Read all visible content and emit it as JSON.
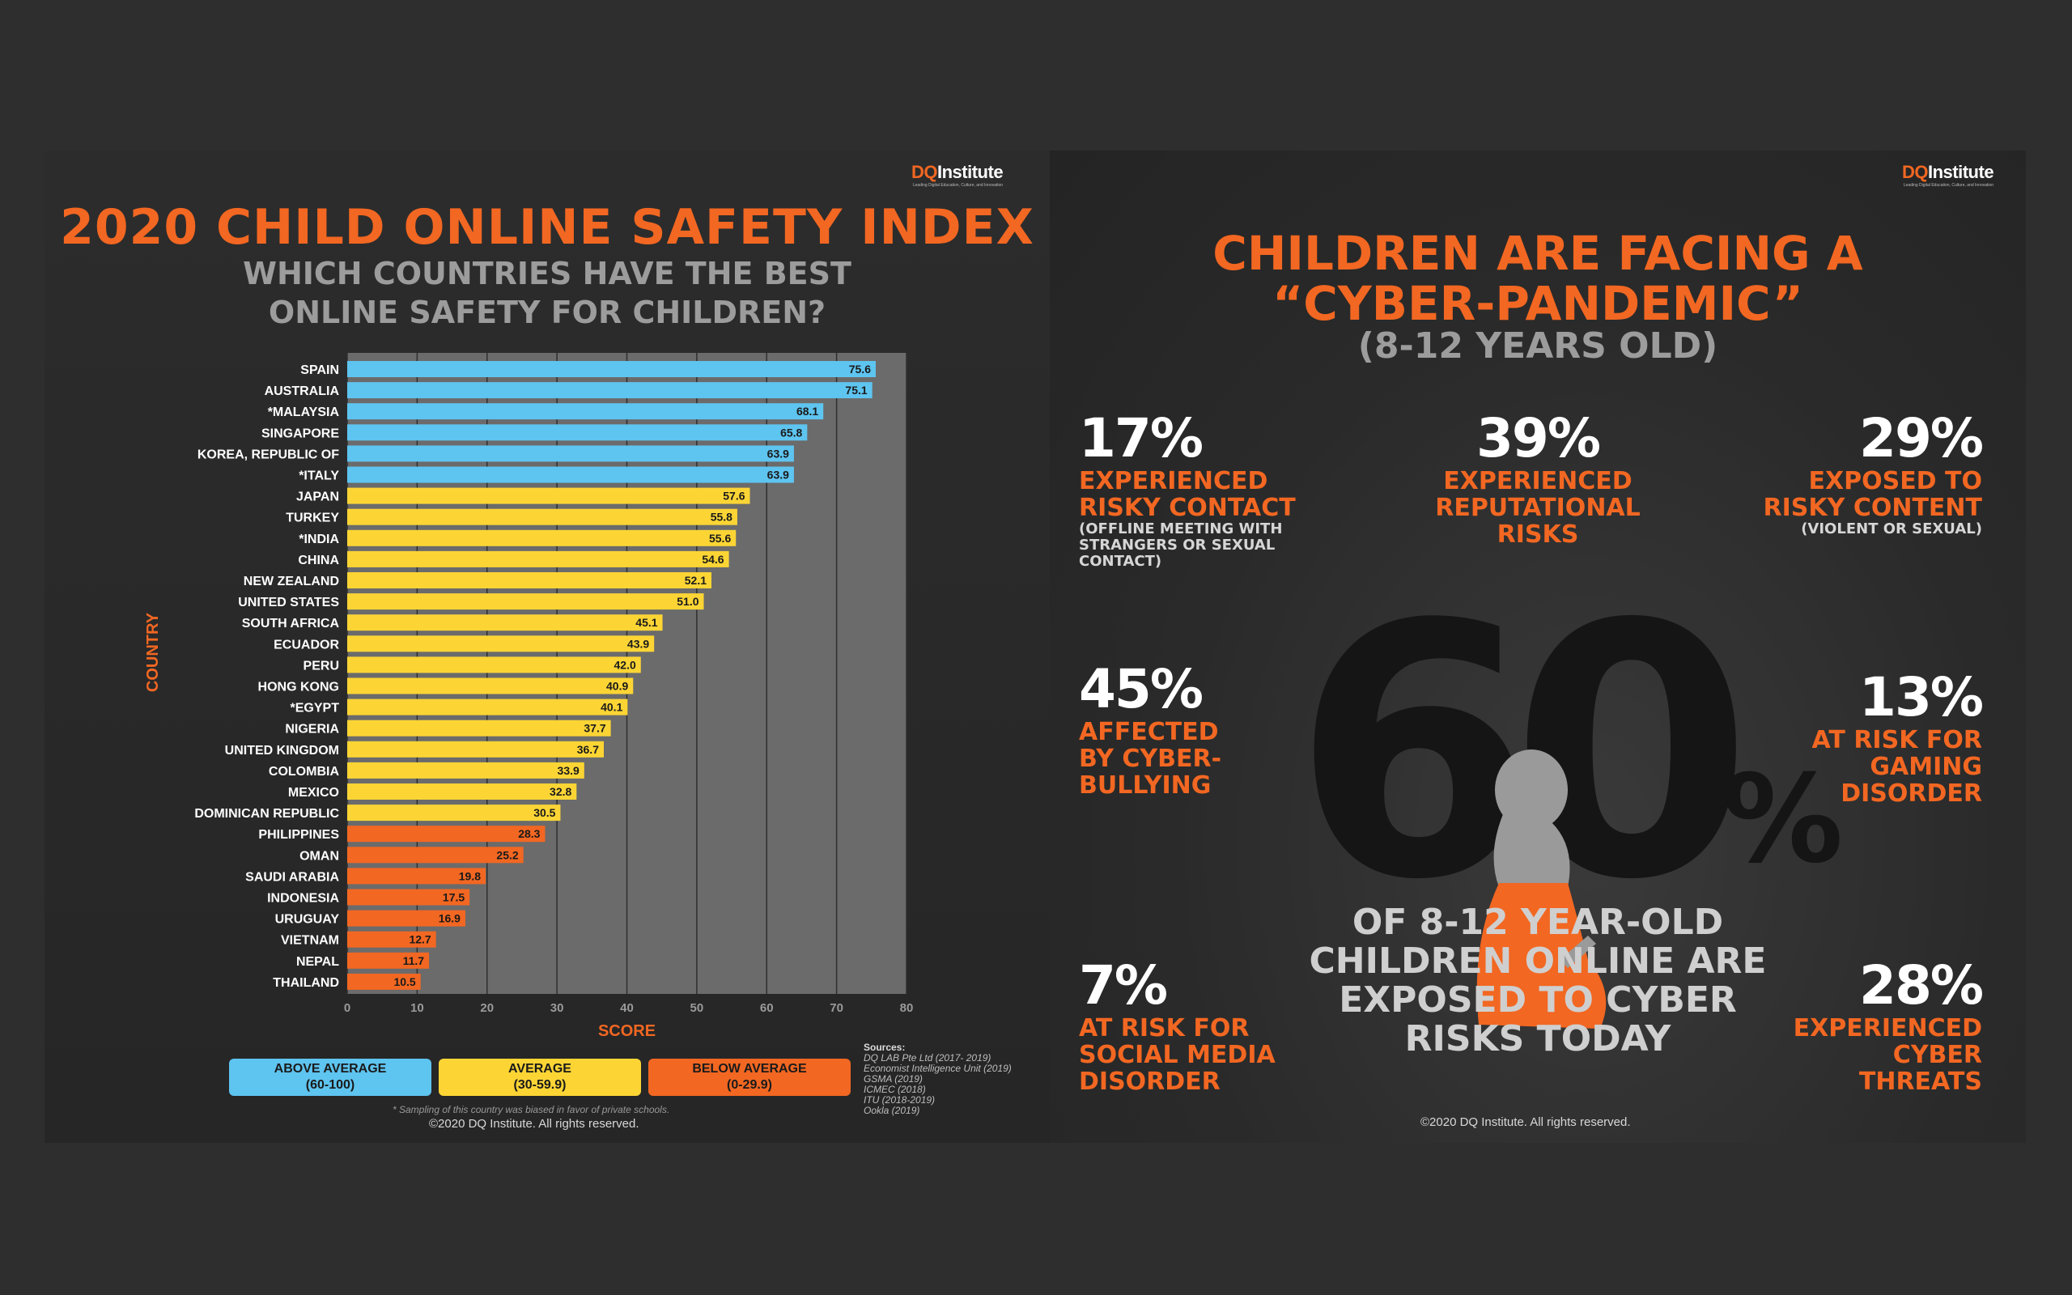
{
  "left": {
    "logo": {
      "dq": "DQ",
      "institute": "Institute",
      "tagline": "Leading Digital Education, Culture, and Innovation"
    },
    "title": "2020 CHILD ONLINE SAFETY INDEX",
    "subtitle_line1": "WHICH COUNTRIES HAVE THE BEST",
    "subtitle_line2": "ONLINE SAFETY FOR CHILDREN?",
    "legend": [
      {
        "label": "ABOVE AVERAGE",
        "range": "(60-100)",
        "color": "#5ec4f0"
      },
      {
        "label": "AVERAGE",
        "range": "(30-59.9)",
        "color": "#fcd535"
      },
      {
        "label": "BELOW AVERAGE",
        "range": "(0-29.9)",
        "color": "#f26722"
      }
    ],
    "footnote": "* Sampling of this country was biased in favor of private schools.",
    "copyright": "©2020 DQ Institute. All rights reserved.",
    "sources_heading": "Sources:",
    "sources": [
      "DQ LAB Pte Ltd (2017- 2019)",
      "Economist Intelligence Unit (2019)",
      "GSMA (2019)",
      "ICMEC (2018)",
      "ITU (2018-2019)",
      "Ookla (2019)"
    ]
  },
  "chart_data": {
    "type": "bar",
    "orientation": "horizontal",
    "xlabel": "SCORE",
    "ylabel": "COUNTRY",
    "xlim": [
      0,
      80
    ],
    "xticks": [
      0,
      10,
      20,
      30,
      40,
      50,
      60,
      70,
      80
    ],
    "grid": true,
    "categories": [
      "SPAIN",
      "AUSTRALIA",
      "*MALAYSIA",
      "SINGAPORE",
      "KOREA, REPUBLIC OF",
      "*ITALY",
      "JAPAN",
      "TURKEY",
      "*INDIA",
      "CHINA",
      "NEW ZEALAND",
      "UNITED STATES",
      "SOUTH AFRICA",
      "ECUADOR",
      "PERU",
      "HONG KONG",
      "*EGYPT",
      "NIGERIA",
      "UNITED KINGDOM",
      "COLOMBIA",
      "MEXICO",
      "DOMINICAN REPUBLIC",
      "PHILIPPINES",
      "OMAN",
      "SAUDI ARABIA",
      "INDONESIA",
      "URUGUAY",
      "VIETNAM",
      "NEPAL",
      "THAILAND"
    ],
    "values": [
      75.6,
      75.1,
      68.1,
      65.8,
      63.9,
      63.9,
      57.6,
      55.8,
      55.6,
      54.6,
      52.1,
      51.0,
      45.1,
      43.9,
      42.0,
      40.9,
      40.1,
      37.7,
      36.7,
      33.9,
      32.8,
      30.5,
      28.3,
      25.2,
      19.8,
      17.5,
      16.9,
      12.7,
      11.7,
      10.5
    ],
    "value_labels": [
      "75.6",
      "75.1",
      "68.1",
      "65.8",
      "63.9",
      "63.9",
      "57.6",
      "55.8",
      "55.6",
      "54.6",
      "52.1",
      "51.0",
      "45.1",
      "43.9",
      "42.0",
      "40.9",
      "40.1",
      "37.7",
      "36.7",
      "33.9",
      "32.8",
      "30.5",
      "28.3",
      "25.2",
      "19.8",
      "17.5",
      "16.9",
      "12.7",
      "11.7",
      "10.5"
    ],
    "colors": {
      "above": "#5ec4f0",
      "average": "#fcd535",
      "below": "#f26722"
    }
  },
  "right": {
    "logo": {
      "dq": "DQ",
      "institute": "Institute",
      "tagline": "Leading Digital Education, Culture, and Innovation"
    },
    "title_line1": "CHILDREN ARE FACING A",
    "title_line2": "“CYBER-PANDEMIC”",
    "title_line3": "(8-12 YEARS OLD)",
    "stats": [
      {
        "pct": "17%",
        "label": [
          "EXPERIENCED",
          "RISKY CONTACT"
        ],
        "sub": [
          "(OFFLINE MEETING WITH",
          "STRANGERS OR SEXUAL",
          "CONTACT)"
        ]
      },
      {
        "pct": "39%",
        "label": [
          "EXPERIENCED",
          "REPUTATIONAL",
          "RISKS"
        ],
        "sub": []
      },
      {
        "pct": "29%",
        "label": [
          "EXPOSED TO",
          "RISKY CONTENT"
        ],
        "sub": [
          "(VIOLENT OR SEXUAL)"
        ]
      },
      {
        "pct": "45%",
        "label": [
          "AFFECTED",
          "BY CYBER-",
          "BULLYING"
        ],
        "sub": []
      },
      {
        "pct": "13%",
        "label": [
          "AT RISK FOR",
          "GAMING",
          "DISORDER"
        ],
        "sub": []
      },
      {
        "pct": "7%",
        "label": [
          "AT RISK FOR",
          "SOCIAL MEDIA",
          "DISORDER"
        ],
        "sub": []
      },
      {
        "pct": "28%",
        "label": [
          "EXPERIENCED",
          "CYBER",
          "THREATS"
        ],
        "sub": []
      }
    ],
    "big_number": "60",
    "big_pct_sign": "%",
    "center_text": [
      "OF 8-12 YEAR-OLD",
      "CHILDREN ONLINE ARE",
      "EXPOSED TO CYBER",
      "RISKS TODAY"
    ],
    "copyright": "©2020 DQ Institute. All rights reserved."
  }
}
